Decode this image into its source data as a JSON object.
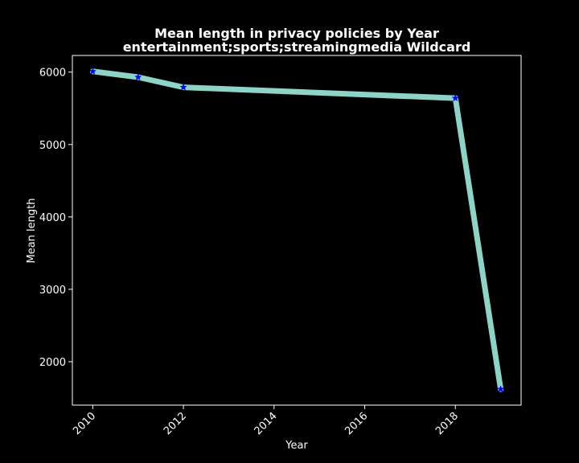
{
  "chart_data": {
    "type": "line",
    "title": "Mean length in privacy policies by Year",
    "subtitle": "entertainment;sports;streamingmedia Wildcard",
    "xlabel": "Year",
    "ylabel": "Mean length",
    "x": [
      2010,
      2011,
      2012,
      2018,
      2019
    ],
    "series": [
      {
        "values": [
          6010,
          5930,
          5790,
          5640,
          1620
        ]
      }
    ],
    "xlim": [
      2009.55,
      2019.45
    ],
    "ylim": [
      1400,
      6230
    ],
    "xticks": [
      2010,
      2012,
      2014,
      2016,
      2018
    ],
    "yticks": [
      2000,
      3000,
      4000,
      5000,
      6000
    ],
    "grid": false,
    "colors": {
      "background": "#000000",
      "line": "#8dd3c7",
      "marker": "#0000ff",
      "axes": "#ffffff"
    },
    "marker": "star"
  }
}
